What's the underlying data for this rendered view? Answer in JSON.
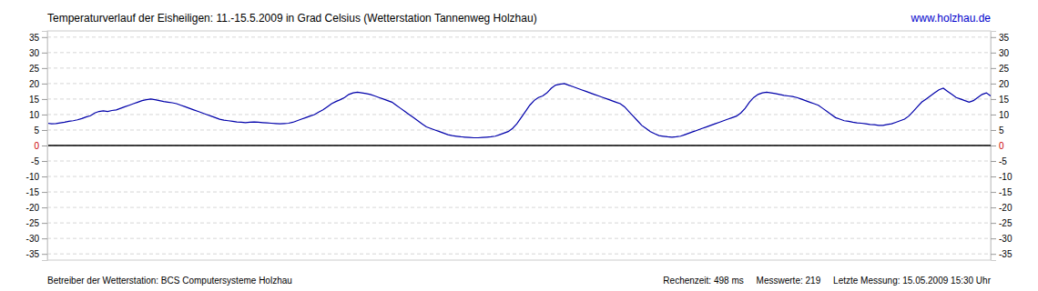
{
  "chart_data": {
    "type": "line",
    "title": "Temperaturverlauf der Eisheiligen: 11.-15.5.2009 in Grad Celsius (Wetterstation Tannenweg Holzhau)",
    "annotations": [
      "www.holzhau.de",
      "Betreiber der Wetterstation: BCS Computersysteme Holzhau",
      "Rechenzeit: 498 ms     Messwerte: 219     Letzte Messung: 15.05.2009 15:30 Uhr"
    ],
    "values": [
      7.2,
      7.0,
      7.1,
      7.3,
      7.5,
      7.8,
      8.0,
      8.3,
      8.7,
      9.2,
      9.6,
      10.5,
      11.0,
      11.2,
      11.0,
      11.3,
      11.5,
      12.0,
      12.5,
      13.0,
      13.5,
      14.0,
      14.5,
      14.8,
      15.0,
      14.8,
      14.5,
      14.2,
      14.0,
      13.8,
      13.5,
      13.0,
      12.5,
      12.0,
      11.5,
      11.0,
      10.5,
      10.0,
      9.5,
      9.0,
      8.5,
      8.2,
      8.0,
      7.8,
      7.6,
      7.5,
      7.4,
      7.5,
      7.6,
      7.5,
      7.4,
      7.3,
      7.2,
      7.1,
      7.0,
      7.1,
      7.2,
      7.5,
      8.0,
      8.5,
      9.0,
      9.5,
      10.0,
      10.8,
      11.5,
      12.5,
      13.5,
      14.2,
      14.8,
      15.5,
      16.5,
      17.0,
      17.2,
      17.0,
      16.8,
      16.5,
      16.0,
      15.5,
      15.0,
      14.5,
      14.0,
      13.0,
      12.0,
      11.0,
      10.0,
      9.0,
      8.0,
      7.0,
      6.0,
      5.5,
      5.0,
      4.5,
      4.0,
      3.5,
      3.2,
      3.0,
      2.8,
      2.7,
      2.6,
      2.5,
      2.5,
      2.6,
      2.7,
      2.8,
      3.0,
      3.5,
      4.0,
      4.5,
      5.5,
      7.0,
      9.0,
      11.0,
      13.0,
      14.5,
      15.5,
      16.0,
      17.0,
      18.5,
      19.5,
      19.8,
      20.0,
      19.5,
      19.0,
      18.5,
      18.0,
      17.5,
      17.0,
      16.5,
      16.0,
      15.5,
      15.0,
      14.5,
      14.0,
      13.5,
      12.5,
      11.0,
      9.5,
      8.0,
      6.5,
      5.5,
      4.5,
      3.8,
      3.2,
      3.0,
      2.8,
      2.7,
      2.8,
      3.0,
      3.5,
      4.0,
      4.5,
      5.0,
      5.5,
      6.0,
      6.5,
      7.0,
      7.5,
      8.0,
      8.5,
      9.0,
      9.5,
      10.5,
      12.0,
      14.0,
      15.5,
      16.5,
      17.0,
      17.2,
      17.0,
      16.8,
      16.5,
      16.2,
      16.0,
      15.8,
      15.5,
      15.0,
      14.5,
      14.0,
      13.5,
      13.0,
      12.0,
      11.0,
      10.0,
      9.0,
      8.5,
      8.0,
      7.8,
      7.5,
      7.3,
      7.2,
      7.0,
      6.8,
      6.7,
      6.5,
      6.5,
      6.8,
      7.0,
      7.5,
      8.0,
      8.5,
      9.5,
      11.0,
      12.5,
      14.0,
      15.0,
      16.0,
      17.0,
      18.0,
      18.5,
      17.5,
      16.5,
      15.5,
      15.0,
      14.5,
      14.0,
      14.5,
      15.5,
      16.5,
      17.0,
      16.0
    ],
    "color": "#0000aa",
    "ylim": [
      -37,
      37
    ],
    "yticks": [
      -35,
      -30,
      -25,
      -20,
      -15,
      -10,
      -5,
      0,
      5,
      10,
      15,
      20,
      25,
      30,
      35
    ],
    "grid": true,
    "tick_labels": "y"
  }
}
